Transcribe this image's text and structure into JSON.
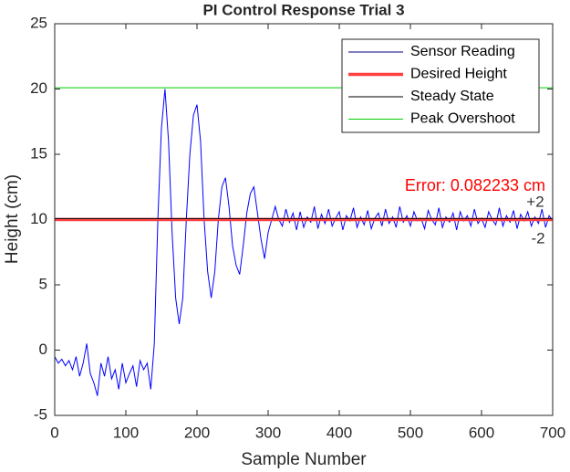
{
  "chart_data": {
    "type": "line",
    "title": "PI Control Response Trial 3",
    "xlabel": "Sample Number",
    "ylabel": "Height (cm)",
    "xlim": [
      0,
      700
    ],
    "ylim": [
      -5,
      25
    ],
    "xticks": [
      0,
      100,
      200,
      300,
      400,
      500,
      600,
      700
    ],
    "yticks": [
      -5,
      0,
      5,
      10,
      15,
      20,
      25
    ],
    "grid": false,
    "legend": "upper right",
    "series": [
      {
        "name": "Sensor Reading",
        "color": "#0000ff",
        "legend_color": "#000080",
        "width": 1,
        "x": [
          0,
          5,
          10,
          15,
          20,
          25,
          30,
          35,
          40,
          45,
          50,
          55,
          60,
          65,
          70,
          75,
          80,
          85,
          90,
          95,
          100,
          105,
          110,
          115,
          120,
          125,
          130,
          135,
          140,
          145,
          150,
          155,
          160,
          165,
          170,
          175,
          180,
          185,
          190,
          195,
          200,
          205,
          210,
          215,
          220,
          225,
          230,
          235,
          240,
          245,
          250,
          255,
          260,
          265,
          270,
          275,
          280,
          285,
          290,
          295,
          300,
          305,
          310,
          315,
          320,
          325,
          330,
          335,
          340,
          345,
          350,
          355,
          360,
          365,
          370,
          375,
          380,
          385,
          390,
          395,
          400,
          405,
          410,
          415,
          420,
          425,
          430,
          435,
          440,
          445,
          450,
          455,
          460,
          465,
          470,
          475,
          480,
          485,
          490,
          495,
          500,
          505,
          510,
          515,
          520,
          525,
          530,
          535,
          540,
          545,
          550,
          555,
          560,
          565,
          570,
          575,
          580,
          585,
          590,
          595,
          600,
          605,
          610,
          615,
          620,
          625,
          630,
          635,
          640,
          645,
          650,
          655,
          660,
          665,
          670,
          675,
          680,
          685,
          690,
          695,
          700
        ],
        "values": [
          -0.5,
          -1,
          -0.7,
          -1.2,
          -0.8,
          -1.5,
          -0.5,
          -2,
          -1,
          0.5,
          -1.8,
          -2.5,
          -3.5,
          -1,
          -2,
          -0.5,
          -2.2,
          -1.5,
          -3,
          -1,
          -2.5,
          -1.8,
          -1.2,
          -2.8,
          -0.8,
          -1.5,
          -1,
          -3,
          0.5,
          10,
          17,
          20,
          16,
          9,
          4,
          2,
          4,
          10,
          15,
          18,
          18.8,
          16,
          10,
          6,
          4,
          6,
          10,
          12.5,
          13.2,
          11,
          8,
          6.5,
          5.8,
          8,
          10.5,
          12,
          12.5,
          10.5,
          8.5,
          7,
          9,
          10,
          11,
          10,
          9.5,
          10.8,
          9.8,
          10.5,
          9.2,
          10.6,
          9.4,
          10.2,
          9.8,
          11,
          9.3,
          10.4,
          9.7,
          10.8,
          9.5,
          10.1,
          10.6,
          9.2,
          10.3,
          9.9,
          10.9,
          9.4,
          10.2,
          9.6,
          10.7,
          9.3,
          10.1,
          10.5,
          9.5,
          10.8,
          9.7,
          10.2,
          9.4,
          11,
          9.8,
          10.3,
          9.5,
          10.6,
          9.9,
          10.1,
          9.3,
          10.7,
          10,
          9.6,
          10.9,
          9.4,
          10.2,
          9.8,
          10.5,
          9.2,
          10.6,
          9.9,
          10.3,
          9.5,
          10.8,
          9.7,
          10.1,
          9.4,
          10.6,
          10,
          9.6,
          10.9,
          9.5,
          10.3,
          9.8,
          10.7,
          9.3,
          10.4,
          9.9,
          10.6,
          9.5,
          10.2,
          9.7,
          10.8,
          9.4,
          10.3,
          9.9
        ]
      },
      {
        "name": "Desired Height",
        "color": "#ff4040",
        "width": 3.5,
        "x": [
          0,
          700
        ],
        "values": [
          10,
          10
        ]
      },
      {
        "name": "Steady State",
        "color": "#000000",
        "width": 1,
        "x": [
          0,
          700
        ],
        "values": [
          10.08,
          10.08
        ]
      },
      {
        "name": "Peak Overshoot",
        "color": "#00cc00",
        "width": 1,
        "x": [
          0,
          700
        ],
        "values": [
          20.1,
          20.1
        ]
      }
    ],
    "annotations": [
      {
        "text": "Error: 0.082233 cm",
        "color": "#ff0000"
      },
      {
        "text": "+2",
        "color": "#333333"
      },
      {
        "text": "-2",
        "color": "#333333"
      }
    ]
  }
}
